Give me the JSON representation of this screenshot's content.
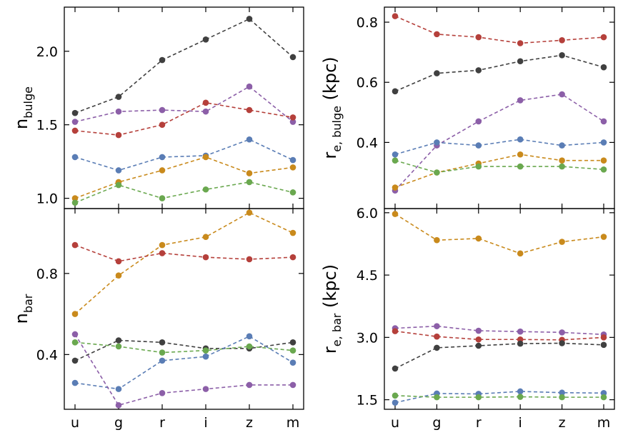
{
  "colors": {
    "black": "#404040",
    "purple": "#8c5fa8",
    "red": "#b5403b",
    "blue": "#5a7db5",
    "orange": "#c98a1c",
    "green": "#6aa84f"
  },
  "chart_data": [
    {
      "id": "n-bulge",
      "type": "line",
      "ylabel_main": "n",
      "ylabel_sub": "bulge",
      "ylim": [
        0.93,
        2.3
      ],
      "yticks": [
        1.0,
        1.5,
        2.0
      ],
      "ytick_labels": [
        "1.0",
        "1.5",
        "2.0"
      ],
      "categories": [
        "u",
        "g",
        "r",
        "i",
        "z",
        "m"
      ],
      "series": [
        {
          "name": "black",
          "color": "#404040",
          "values": [
            1.58,
            1.69,
            1.94,
            2.08,
            2.22,
            1.96
          ]
        },
        {
          "name": "purple",
          "color": "#8c5fa8",
          "values": [
            1.52,
            1.59,
            1.6,
            1.59,
            1.76,
            1.52
          ]
        },
        {
          "name": "red",
          "color": "#b5403b",
          "values": [
            1.46,
            1.43,
            1.5,
            1.65,
            1.6,
            1.55
          ]
        },
        {
          "name": "blue",
          "color": "#5a7db5",
          "values": [
            1.28,
            1.19,
            1.28,
            1.29,
            1.4,
            1.26
          ]
        },
        {
          "name": "orange",
          "color": "#c98a1c",
          "values": [
            1.0,
            1.11,
            1.19,
            1.28,
            1.17,
            1.21
          ]
        },
        {
          "name": "green",
          "color": "#6aa84f",
          "values": [
            0.97,
            1.09,
            1.0,
            1.06,
            1.11,
            1.04
          ]
        }
      ]
    },
    {
      "id": "re-bulge",
      "type": "line",
      "ylabel_main": "r",
      "ylabel_sub": "e, bulge",
      "ylabel_unit": " (kpc)",
      "ylim": [
        0.18,
        0.85
      ],
      "yticks": [
        0.4,
        0.6,
        0.8
      ],
      "ytick_labels": [
        "0.4",
        "0.6",
        "0.8"
      ],
      "categories": [
        "u",
        "g",
        "r",
        "i",
        "z",
        "m"
      ],
      "series": [
        {
          "name": "red",
          "color": "#b5403b",
          "values": [
            0.82,
            0.76,
            0.75,
            0.73,
            0.74,
            0.75
          ]
        },
        {
          "name": "black",
          "color": "#404040",
          "values": [
            0.57,
            0.63,
            0.64,
            0.67,
            0.69,
            0.65
          ]
        },
        {
          "name": "purple",
          "color": "#8c5fa8",
          "values": [
            0.24,
            0.39,
            0.47,
            0.54,
            0.56,
            0.47
          ]
        },
        {
          "name": "blue",
          "color": "#5a7db5",
          "values": [
            0.36,
            0.4,
            0.39,
            0.41,
            0.39,
            0.4
          ]
        },
        {
          "name": "orange",
          "color": "#c98a1c",
          "values": [
            0.25,
            0.3,
            0.33,
            0.36,
            0.34,
            0.34
          ]
        },
        {
          "name": "green",
          "color": "#6aa84f",
          "values": [
            0.34,
            0.3,
            0.32,
            0.32,
            0.32,
            0.31
          ]
        }
      ]
    },
    {
      "id": "n-bar",
      "type": "line",
      "ylabel_main": "n",
      "ylabel_sub": "bar",
      "ylim": [
        0.13,
        1.12
      ],
      "yticks": [
        0.4,
        0.8
      ],
      "ytick_labels": [
        "0.4",
        "0.8"
      ],
      "categories": [
        "u",
        "g",
        "r",
        "i",
        "z",
        "m"
      ],
      "series": [
        {
          "name": "orange",
          "color": "#c98a1c",
          "values": [
            0.6,
            0.79,
            0.94,
            0.98,
            1.1,
            1.0
          ]
        },
        {
          "name": "red",
          "color": "#b5403b",
          "values": [
            0.94,
            0.86,
            0.9,
            0.88,
            0.87,
            0.88
          ]
        },
        {
          "name": "black",
          "color": "#404040",
          "values": [
            0.37,
            0.47,
            0.46,
            0.43,
            0.43,
            0.46
          ]
        },
        {
          "name": "green",
          "color": "#6aa84f",
          "values": [
            0.46,
            0.44,
            0.41,
            0.42,
            0.44,
            0.42
          ]
        },
        {
          "name": "blue",
          "color": "#5a7db5",
          "values": [
            0.26,
            0.23,
            0.37,
            0.39,
            0.49,
            0.36
          ]
        },
        {
          "name": "purple",
          "color": "#8c5fa8",
          "values": [
            0.5,
            0.15,
            0.21,
            0.23,
            0.25,
            0.25
          ]
        }
      ]
    },
    {
      "id": "re-bar",
      "type": "line",
      "ylabel_main": "r",
      "ylabel_sub": "e, bar",
      "ylabel_unit": " (kpc)",
      "ylim": [
        1.27,
        6.1
      ],
      "yticks": [
        1.5,
        3.0,
        4.5,
        6.0
      ],
      "ytick_labels": [
        "1.5",
        "3.0",
        "4.5",
        "6.0"
      ],
      "categories": [
        "u",
        "g",
        "r",
        "i",
        "z",
        "m"
      ],
      "series": [
        {
          "name": "orange",
          "color": "#c98a1c",
          "values": [
            5.97,
            5.34,
            5.38,
            5.02,
            5.3,
            5.42
          ]
        },
        {
          "name": "purple",
          "color": "#8c5fa8",
          "values": [
            3.22,
            3.27,
            3.16,
            3.14,
            3.12,
            3.07
          ]
        },
        {
          "name": "red",
          "color": "#b5403b",
          "values": [
            3.15,
            3.02,
            2.95,
            2.95,
            2.94,
            3.0
          ]
        },
        {
          "name": "black",
          "color": "#404040",
          "values": [
            2.25,
            2.75,
            2.8,
            2.85,
            2.86,
            2.82
          ]
        },
        {
          "name": "blue",
          "color": "#5a7db5",
          "values": [
            1.43,
            1.65,
            1.64,
            1.7,
            1.67,
            1.66
          ]
        },
        {
          "name": "green",
          "color": "#6aa84f",
          "values": [
            1.6,
            1.56,
            1.56,
            1.57,
            1.56,
            1.56
          ]
        }
      ]
    }
  ]
}
